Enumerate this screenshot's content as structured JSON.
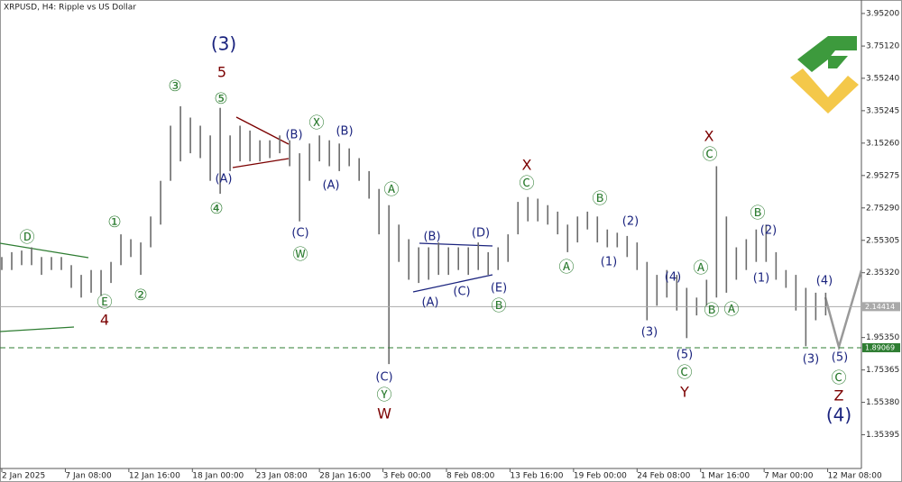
{
  "chart_data": {
    "type": "hilo",
    "symbol_info": "XRPUSD, H4:  Ripple vs US Dollar",
    "color": "#6b6b6b",
    "xlim": [
      0,
      433
    ],
    "ylim": [
      1.146,
      4.024
    ],
    "grid": false,
    "x": [
      0,
      5,
      10,
      15,
      20,
      25,
      30,
      35,
      40,
      45,
      50,
      55,
      60,
      65,
      70,
      75,
      80,
      85,
      90,
      95,
      100,
      105,
      110,
      115,
      120,
      125,
      130,
      135,
      140,
      145,
      150,
      155,
      160,
      165,
      170,
      175,
      180,
      185,
      190,
      195,
      200,
      205,
      210,
      215,
      220,
      225,
      230,
      235,
      240,
      245,
      250,
      255,
      260,
      265,
      270,
      275,
      280,
      285,
      290,
      295,
      300,
      305,
      310,
      315,
      320,
      325,
      330,
      335,
      340,
      345,
      350,
      355,
      360,
      365,
      370,
      375,
      380,
      385,
      390,
      395,
      400,
      405,
      410,
      415
    ],
    "high": [
      2.45,
      2.48,
      2.49,
      2.51,
      2.45,
      2.45,
      2.45,
      2.4,
      2.34,
      2.37,
      2.37,
      2.42,
      2.59,
      2.56,
      2.54,
      2.7,
      2.92,
      3.26,
      3.38,
      3.31,
      3.26,
      3.2,
      3.37,
      3.2,
      3.26,
      3.23,
      3.17,
      3.17,
      3.2,
      3.17,
      3.09,
      3.15,
      3.2,
      3.17,
      3.15,
      3.12,
      3.06,
      2.98,
      2.87,
      2.77,
      2.65,
      2.56,
      2.51,
      2.51,
      2.54,
      2.51,
      2.51,
      2.51,
      2.54,
      2.48,
      2.51,
      2.59,
      2.79,
      2.82,
      2.81,
      2.77,
      2.73,
      2.65,
      2.7,
      2.73,
      2.7,
      2.62,
      2.6,
      2.58,
      2.54,
      2.42,
      2.34,
      2.37,
      2.34,
      2.26,
      2.2,
      2.31,
      3.01,
      2.7,
      2.51,
      2.56,
      2.62,
      2.65,
      2.48,
      2.37,
      2.34,
      2.26,
      2.23,
      2.23
    ],
    "low": [
      2.37,
      2.37,
      2.4,
      2.4,
      2.34,
      2.37,
      2.37,
      2.26,
      2.2,
      2.23,
      2.21,
      2.29,
      2.4,
      2.45,
      2.34,
      2.51,
      2.65,
      2.92,
      3.04,
      3.09,
      3.06,
      2.92,
      2.84,
      2.98,
      3.04,
      3.04,
      3.04,
      3.06,
      3.09,
      3.01,
      2.67,
      2.92,
      3.04,
      3.01,
      2.98,
      3.01,
      2.92,
      2.81,
      2.59,
      1.79,
      2.42,
      2.31,
      2.29,
      2.31,
      2.34,
      2.34,
      2.37,
      2.34,
      2.37,
      2.34,
      2.37,
      2.42,
      2.59,
      2.67,
      2.67,
      2.65,
      2.59,
      2.48,
      2.54,
      2.62,
      2.54,
      2.51,
      2.51,
      2.45,
      2.37,
      2.06,
      2.15,
      2.2,
      2.12,
      1.95,
      2.09,
      2.15,
      2.2,
      2.23,
      2.31,
      2.37,
      2.42,
      2.42,
      2.31,
      2.26,
      2.12,
      1.9,
      2.06,
      2.09
    ],
    "yticks": [
      {
        "value": 3.952,
        "label": "3.95200"
      },
      {
        "value": 3.7512,
        "label": "3.75120"
      },
      {
        "value": 3.5524,
        "label": "3.55240"
      },
      {
        "value": 3.35245,
        "label": "3.35245"
      },
      {
        "value": 3.1526,
        "label": "3.15260"
      },
      {
        "value": 2.95275,
        "label": "2.95275"
      },
      {
        "value": 2.7529,
        "label": "2.75290"
      },
      {
        "value": 2.55305,
        "label": "2.55305"
      },
      {
        "value": 2.3532,
        "label": "2.35320"
      },
      {
        "value": 1.9535,
        "label": "1.95350"
      },
      {
        "value": 1.75365,
        "label": "1.75365"
      },
      {
        "value": 1.5538,
        "label": "1.55380"
      },
      {
        "value": 1.35395,
        "label": "1.35395"
      }
    ],
    "xticks": [
      {
        "value": 0,
        "label": "2 Jan 2025"
      },
      {
        "value": 32,
        "label": "7 Jan 08:00"
      },
      {
        "value": 64,
        "label": "12 Jan 16:00"
      },
      {
        "value": 96,
        "label": "18 Jan 00:00"
      },
      {
        "value": 128,
        "label": "23 Jan 08:00"
      },
      {
        "value": 160,
        "label": "28 Jan 16:00"
      },
      {
        "value": 192,
        "label": "3 Feb 00:00"
      },
      {
        "value": 224,
        "label": "8 Feb 08:00"
      },
      {
        "value": 256,
        "label": "13 Feb 16:00"
      },
      {
        "value": 288,
        "label": "19 Feb 00:00"
      },
      {
        "value": 320,
        "label": "24 Feb 08:00"
      },
      {
        "value": 352,
        "label": "1 Mar 16:00"
      },
      {
        "value": 384,
        "label": "7 Mar 00:00"
      },
      {
        "value": 416,
        "label": "12 Mar 08:00"
      }
    ],
    "price_lines": [
      {
        "value": 2.14414,
        "color": "#a9a9a9"
      },
      {
        "value": 1.89069,
        "color": "#2e7d32"
      }
    ],
    "annotations": [
      "(3)",
      "5",
      "③",
      "⑤",
      "Ⓧ",
      "(B)",
      "(B)",
      "(A)",
      "④",
      "(A)",
      "(C)",
      "Ⓦ",
      "①",
      "Ⓓ",
      "②",
      "Ⓔ",
      "4",
      "Ⓐ",
      "(B)",
      "(D)",
      "(A)",
      "(C)",
      "(E)",
      "Ⓑ",
      "(C)",
      "Ⓨ",
      "W",
      "X",
      "Ⓒ",
      "Ⓑ",
      "Ⓐ",
      "(2)",
      "(1)",
      "(4)",
      "(3)",
      "(5)",
      "Ⓒ",
      "Y",
      "X",
      "Ⓒ",
      "Ⓐ",
      "Ⓑ",
      "Ⓐ",
      "Ⓑ",
      "(2)",
      "(1)",
      "(4)",
      "(3)",
      "(5)",
      "Ⓒ",
      "Z",
      "(4)"
    ]
  }
}
